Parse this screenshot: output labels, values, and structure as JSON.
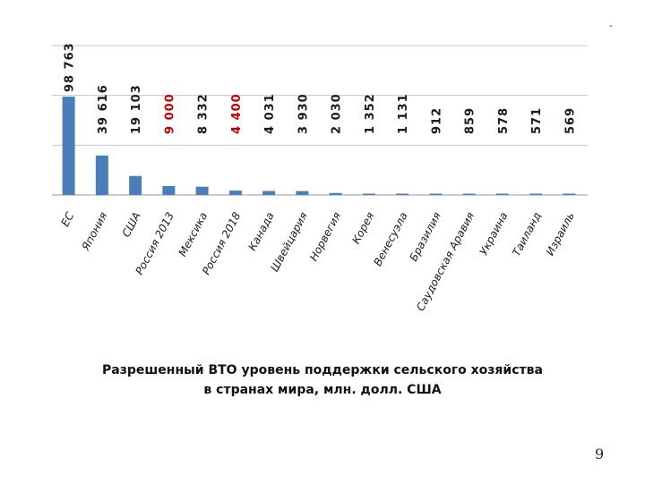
{
  "page": {
    "caption_line1": "Разрешенный ВТО уровень поддержки сельского хозяйства",
    "caption_line2": "в странах мира, млн. долл. США",
    "page_number": "9",
    "corner_mark": "-"
  },
  "colors": {
    "bar": "#4a7ebb",
    "value_default": "#1a1a1a",
    "value_highlight": "#c00000",
    "grid": "#c8c8c8"
  },
  "chart_data": {
    "type": "bar",
    "categories": [
      "ЕС",
      "Япония",
      "США",
      "Россия 2013",
      "Мексика",
      "Россия 2018",
      "Канада",
      "Швейцария",
      "Норвегия",
      "Корея",
      "Венесуэла",
      "Бразилия",
      "Саудовская Аравия",
      "Украина",
      "Таиланд",
      "Израиль"
    ],
    "values": [
      98763,
      39616,
      19103,
      9000,
      8332,
      4400,
      4031,
      3930,
      2030,
      1352,
      1131,
      912,
      859,
      578,
      571,
      569
    ],
    "value_labels": [
      "98 763",
      "39 616",
      "19 103",
      "9 000",
      "8 332",
      "4 400",
      "4 031",
      "3 930",
      "2 030",
      "1 352",
      "1 131",
      "912",
      "859",
      "578",
      "571",
      "569"
    ],
    "highlighted": [
      "Россия 2013",
      "Россия 2018"
    ],
    "ylim": [
      0,
      150000
    ],
    "grid": true,
    "gridlines": [
      0,
      50000,
      100000,
      150000
    ]
  }
}
